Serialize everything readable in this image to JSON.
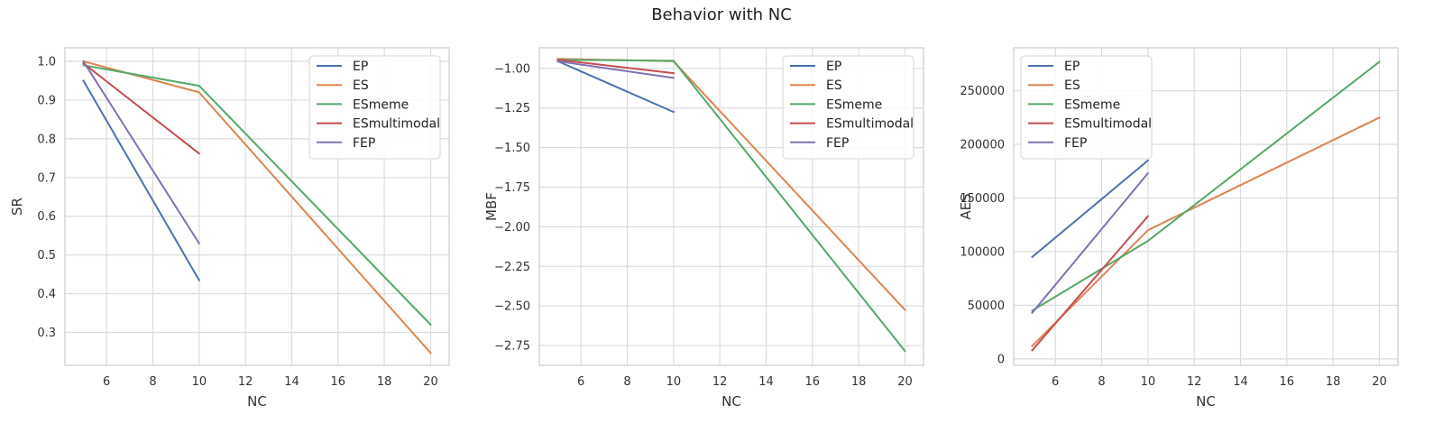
{
  "figure": {
    "title": "Behavior with NC"
  },
  "chart_data": [
    {
      "type": "line",
      "title": "",
      "xlabel": "NC",
      "ylabel": "SR",
      "xlim": [
        4.2,
        20.8
      ],
      "ylim": [
        0.215,
        1.035
      ],
      "xticks": [
        6,
        8,
        10,
        12,
        14,
        16,
        18,
        20
      ],
      "yticks": [
        0.3,
        0.4,
        0.5,
        0.6,
        0.7,
        0.8,
        0.9,
        1.0
      ],
      "ytick_labels": [
        "0.3",
        "0.4",
        "0.5",
        "0.6",
        "0.7",
        "0.8",
        "0.9",
        "1.0"
      ],
      "grid": true,
      "legend": "top-right",
      "series": [
        {
          "name": "EP",
          "color": "#4c72b0",
          "x": [
            5,
            10
          ],
          "y": [
            0.95,
            0.435
          ]
        },
        {
          "name": "ES",
          "color": "#dd8452",
          "x": [
            5,
            10,
            20
          ],
          "y": [
            1.0,
            0.92,
            0.247
          ]
        },
        {
          "name": "ESmeme",
          "color": "#55a868",
          "x": [
            5,
            10,
            20
          ],
          "y": [
            0.99,
            0.937,
            0.32
          ]
        },
        {
          "name": "ESmultimodal",
          "color": "#c44e52",
          "x": [
            5,
            10
          ],
          "y": [
            0.995,
            0.762
          ]
        },
        {
          "name": "FEP",
          "color": "#8172b3",
          "x": [
            5,
            10
          ],
          "y": [
            1.0,
            0.53
          ]
        }
      ]
    },
    {
      "type": "line",
      "title": "",
      "xlabel": "NC",
      "ylabel": "MBF",
      "xlim": [
        4.2,
        20.8
      ],
      "ylim": [
        -2.875,
        -0.87
      ],
      "xticks": [
        6,
        8,
        10,
        12,
        14,
        16,
        18,
        20
      ],
      "yticks": [
        -2.75,
        -2.5,
        -2.25,
        -2.0,
        -1.75,
        -1.5,
        -1.25,
        -1.0
      ],
      "ytick_labels": [
        "−2.75",
        "−2.50",
        "−2.25",
        "−2.00",
        "−1.75",
        "−1.50",
        "−1.25",
        "−1.00"
      ],
      "grid": true,
      "legend": "top-right",
      "series": [
        {
          "name": "EP",
          "color": "#4c72b0",
          "x": [
            5,
            10
          ],
          "y": [
            -0.955,
            -1.275
          ]
        },
        {
          "name": "ES",
          "color": "#dd8452",
          "x": [
            5,
            10,
            20
          ],
          "y": [
            -0.94,
            -0.955,
            -2.525
          ]
        },
        {
          "name": "ESmeme",
          "color": "#55a868",
          "x": [
            5,
            10,
            20
          ],
          "y": [
            -0.945,
            -0.952,
            -2.785
          ]
        },
        {
          "name": "ESmultimodal",
          "color": "#c44e52",
          "x": [
            5,
            10
          ],
          "y": [
            -0.945,
            -1.03
          ]
        },
        {
          "name": "FEP",
          "color": "#8172b3",
          "x": [
            5,
            10
          ],
          "y": [
            -0.955,
            -1.06
          ]
        }
      ]
    },
    {
      "type": "line",
      "title": "",
      "xlabel": "NC",
      "ylabel": "AES",
      "xlim": [
        4.2,
        20.8
      ],
      "ylim": [
        -6000,
        290000
      ],
      "xticks": [
        6,
        8,
        10,
        12,
        14,
        16,
        18,
        20
      ],
      "yticks": [
        0,
        50000,
        100000,
        150000,
        200000,
        250000
      ],
      "ytick_labels": [
        "0",
        "50000",
        "100000",
        "150000",
        "200000",
        "250000"
      ],
      "grid": true,
      "legend": "top-left",
      "series": [
        {
          "name": "EP",
          "color": "#4c72b0",
          "x": [
            5,
            10
          ],
          "y": [
            95000,
            185000
          ]
        },
        {
          "name": "ES",
          "color": "#dd8452",
          "x": [
            5,
            10,
            20
          ],
          "y": [
            12000,
            120000,
            225000
          ]
        },
        {
          "name": "ESmeme",
          "color": "#55a868",
          "x": [
            5,
            10,
            20
          ],
          "y": [
            45000,
            110000,
            277000
          ]
        },
        {
          "name": "ESmultimodal",
          "color": "#c44e52",
          "x": [
            5,
            10
          ],
          "y": [
            8000,
            133000
          ]
        },
        {
          "name": "FEP",
          "color": "#8172b3",
          "x": [
            5,
            10
          ],
          "y": [
            43000,
            173000
          ]
        }
      ]
    }
  ]
}
